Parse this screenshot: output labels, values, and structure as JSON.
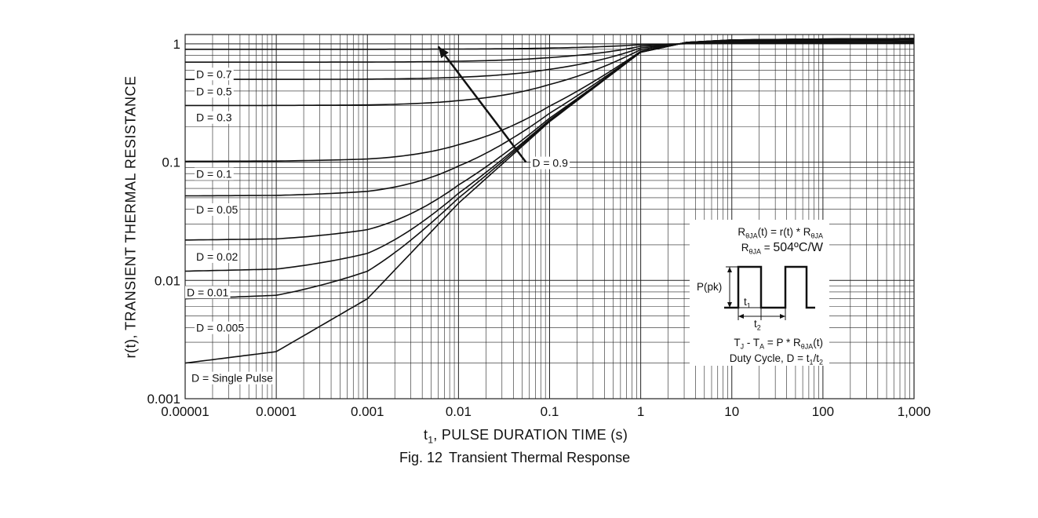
{
  "chart_data": {
    "type": "line",
    "x_scale": "log",
    "y_scale": "log",
    "xlim": [
      1e-05,
      1000
    ],
    "ylim": [
      0.001,
      1.2
    ],
    "x_tick_labels": [
      "0.00001",
      "0.0001",
      "0.001",
      "0.01",
      "0.1",
      "1",
      "10",
      "100",
      "1,000"
    ],
    "y_tick_labels": [
      "1",
      "0.1",
      "0.01",
      "0.001"
    ],
    "grid": true,
    "xlabel_main": "t",
    "xlabel_sub": "1",
    "xlabel_rest": ", PULSE DURATION TIME (s)",
    "ylabel": "r(t), TRANSIENT THERMAL RESISTANCE",
    "series": [
      {
        "name": "D = 0.9",
        "steady": 0.9
      },
      {
        "name": "D = 0.7",
        "steady": 0.7
      },
      {
        "name": "D = 0.5",
        "steady": 0.5
      },
      {
        "name": "D = 0.3",
        "steady": 0.3
      },
      {
        "name": "D = 0.1",
        "steady": 0.1
      },
      {
        "name": "D = 0.05",
        "steady": 0.05
      },
      {
        "name": "D = 0.02",
        "steady": 0.02
      },
      {
        "name": "D = 0.01",
        "steady": 0.01
      },
      {
        "name": "D = 0.005",
        "steady": 0.005
      },
      {
        "name": "D = Single Pulse",
        "steady": 0.002
      }
    ],
    "annotation_arrow": {
      "from": [
        0.055,
        0.1
      ],
      "to": [
        0.006,
        0.95
      ],
      "label": "D = 0.9"
    }
  },
  "caption": {
    "fig": "Fig. 12",
    "title": "Transient Thermal Response"
  },
  "inset": {
    "eq1_a": "R",
    "eq1_a_sub": "θJA",
    "eq1_b": "(t) = r(t) * R",
    "eq1_b_sub": "θJA",
    "eq2_a": "R",
    "eq2_a_sub": "θJA",
    "eq2_b": " = ",
    "eq2_val": "504ºC/W",
    "ppk": "P(pk)",
    "t1": "t",
    "t1_sub": "1",
    "t2": "t",
    "t2_sub": "2",
    "eq3_a": "T",
    "eq3_a_sub": "J",
    "eq3_b": " - T",
    "eq3_b_sub": "A",
    "eq3_c": " = P * R",
    "eq3_c_sub": "θJA",
    "eq3_d": "(t)",
    "eq4_a": "Duty Cycle, D = t",
    "eq4_a_sub": "1",
    "eq4_b": "/t",
    "eq4_b_sub": "2"
  }
}
